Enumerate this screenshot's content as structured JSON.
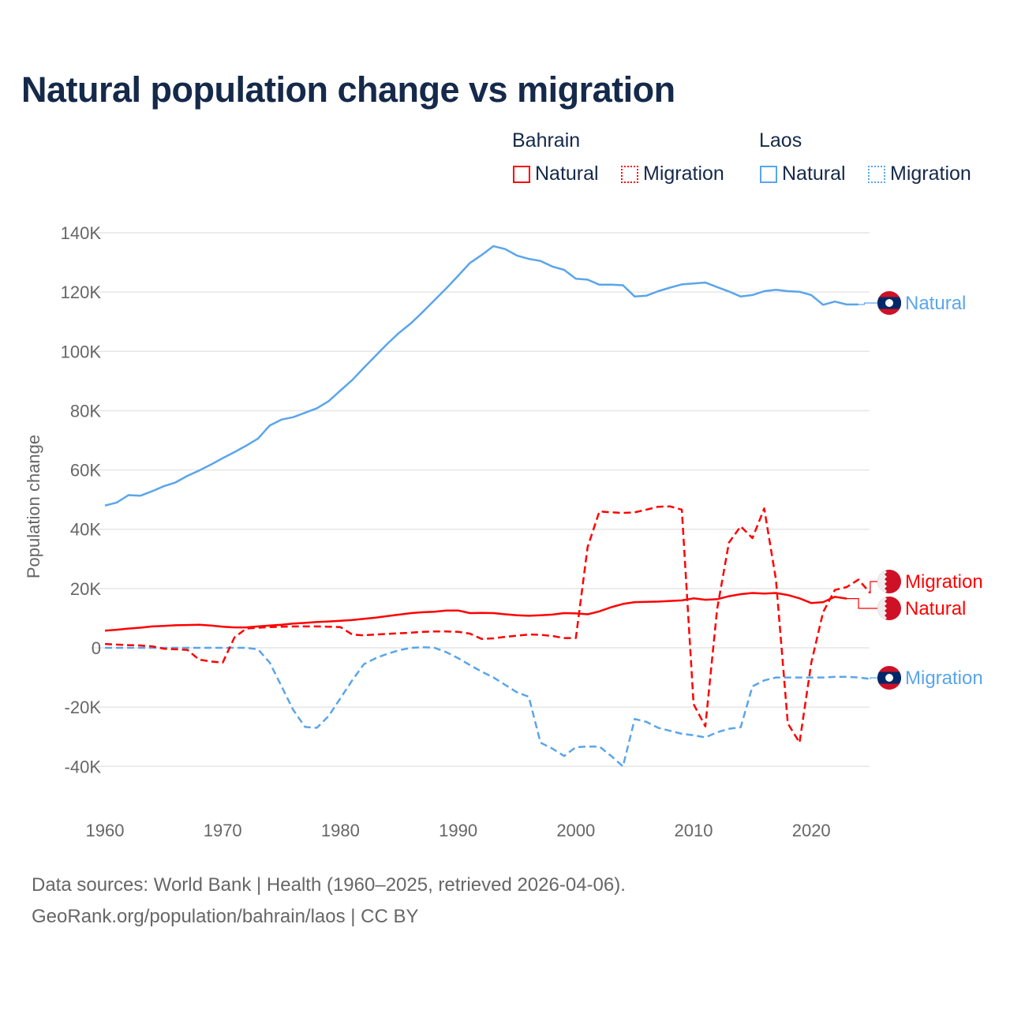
{
  "title": "Natural population change vs migration",
  "legend": {
    "groups": [
      {
        "name": "Bahrain",
        "color": "#ff0000",
        "items": [
          "Natural",
          "Migration"
        ]
      },
      {
        "name": "Laos",
        "color": "#5aa5eb",
        "items": [
          "Natural",
          "Migration"
        ]
      }
    ]
  },
  "footer": {
    "line1": "Data sources: World Bank | Health (1960–2025, retrieved 2026-04-06).",
    "line2": "GeoRank.org/population/bahrain/laos | CC BY"
  },
  "chart_data": {
    "type": "line",
    "title": "Natural population change vs migration",
    "xlabel": "",
    "ylabel": "Population change",
    "xlim": [
      1960,
      2025
    ],
    "ylim": [
      -40000,
      140000
    ],
    "x_ticks": [
      1960,
      1970,
      1980,
      1990,
      2000,
      2010,
      2020
    ],
    "x_tick_labels": [
      "1960",
      "1970",
      "1980",
      "1990",
      "2000",
      "2010",
      "2020"
    ],
    "y_ticks": [
      -40000,
      -20000,
      0,
      20000,
      40000,
      60000,
      80000,
      100000,
      120000,
      140000
    ],
    "y_tick_labels": [
      "-40K",
      "-20K",
      "0",
      "20K",
      "40K",
      "60K",
      "80K",
      "100K",
      "120K",
      "140K"
    ],
    "grid": true,
    "legend_position": "top-right",
    "series": [
      {
        "name": "Laos Natural",
        "country": "Laos",
        "label": "Natural",
        "color": "#5aa5eb",
        "dash": false,
        "start": 1960,
        "values": [
          48000,
          49000,
          51500,
          51300,
          52800,
          54500,
          55800,
          58000,
          59800,
          61800,
          64000,
          66000,
          68200,
          70600,
          75000,
          77000,
          77800,
          79300,
          80800,
          83200,
          86800,
          90300,
          94500,
          98600,
          102600,
          106300,
          109500,
          113300,
          117300,
          121300,
          125500,
          129800,
          132500,
          135500,
          134500,
          132300,
          131200,
          130500,
          128600,
          127500,
          124500,
          124200,
          122500,
          122500,
          122300,
          118500,
          118800,
          120300,
          121500,
          122600,
          122900,
          123200,
          121700,
          120200,
          118500,
          119000,
          120300,
          120800,
          120300,
          120100,
          119000,
          115700,
          116800,
          115800,
          115800
        ]
      },
      {
        "name": "Laos Migration",
        "country": "Laos",
        "label": "Migration",
        "color": "#5aa5eb",
        "dash": true,
        "start": 1960,
        "values": [
          0,
          0,
          0,
          0,
          0,
          0,
          0,
          0,
          0,
          0,
          0,
          0,
          0,
          -500,
          -5000,
          -13000,
          -21000,
          -26700,
          -27000,
          -23000,
          -17000,
          -11000,
          -5500,
          -3500,
          -2000,
          -800,
          0,
          200,
          0,
          -1500,
          -3500,
          -5800,
          -8000,
          -10000,
          -12500,
          -15000,
          -16500,
          -32000,
          -34000,
          -36500,
          -33500,
          -33300,
          -33300,
          -36500,
          -40000,
          -24000,
          -25000,
          -27000,
          -28000,
          -29000,
          -29500,
          -30200,
          -28500,
          -27300,
          -26800,
          -13000,
          -11000,
          -10000,
          -10000,
          -10000,
          -10000,
          -10000,
          -9800,
          -9800,
          -10000,
          -10500
        ]
      },
      {
        "name": "Bahrain Natural",
        "country": "Bahrain",
        "label": "Natural",
        "color": "#ff0000",
        "dash": false,
        "start": 1960,
        "values": [
          5800,
          6100,
          6500,
          6800,
          7200,
          7400,
          7600,
          7700,
          7800,
          7500,
          7100,
          6900,
          6900,
          7200,
          7500,
          7800,
          8200,
          8400,
          8700,
          8900,
          9100,
          9400,
          9800,
          10200,
          10700,
          11200,
          11700,
          12000,
          12200,
          12600,
          12600,
          11700,
          11800,
          11700,
          11300,
          11000,
          10800,
          11000,
          11200,
          11700,
          11600,
          11300,
          12300,
          13700,
          14800,
          15400,
          15500,
          15600,
          15800,
          16000,
          16700,
          16200,
          16400,
          17400,
          18100,
          18500,
          18300,
          18500,
          17800,
          16700,
          15100,
          15400,
          17200,
          16600
        ]
      },
      {
        "name": "Bahrain Migration",
        "country": "Bahrain",
        "label": "Migration",
        "color": "#ff0000",
        "dash": true,
        "start": 1960,
        "values": [
          1300,
          1100,
          900,
          800,
          500,
          -300,
          -500,
          -700,
          -4000,
          -4600,
          -5000,
          3500,
          6500,
          6800,
          7000,
          7100,
          7200,
          7200,
          7200,
          7100,
          7000,
          4500,
          4200,
          4500,
          4700,
          4900,
          5100,
          5400,
          5500,
          5500,
          5400,
          4800,
          3000,
          3200,
          3700,
          4100,
          4500,
          4400,
          4000,
          3300,
          3300,
          34000,
          46000,
          45700,
          45500,
          45700,
          46600,
          47600,
          47700,
          46600,
          -19000,
          -26500,
          13000,
          35500,
          41000,
          37000,
          47000,
          23000,
          -25500,
          -32000,
          -5000,
          12000,
          19500,
          20500,
          23000,
          18500
        ]
      }
    ]
  }
}
